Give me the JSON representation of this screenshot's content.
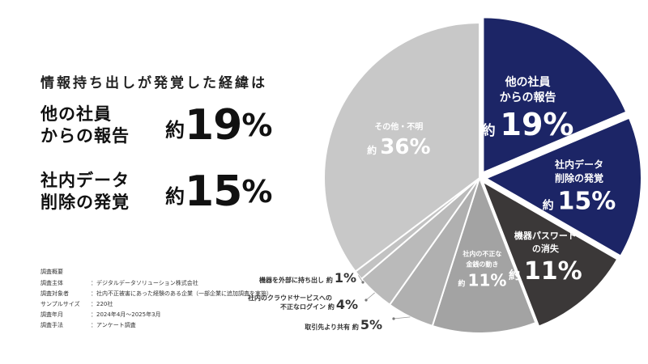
{
  "headline": "情報持ち出しが発覚した経緯は",
  "highlights": [
    {
      "label_lines": [
        "他の社員",
        "からの報告"
      ],
      "prefix": "約",
      "value": "19",
      "unit": "%"
    },
    {
      "label_lines": [
        "社内データ",
        "削除の発覚"
      ],
      "prefix": "約",
      "value": "15",
      "unit": "%"
    }
  ],
  "survey": {
    "title": "調査概要",
    "rows": [
      {
        "key": "調査主体",
        "value": "：デジタルデータソリューション株式会社"
      },
      {
        "key": "調査対象者",
        "value": "：社内不正被害にあった経験のある企業（一部企業に追加調査を実施）"
      },
      {
        "key": "サンプルサイズ",
        "value": "：220社"
      },
      {
        "key": "調査年月",
        "value": "：2024年4月〜2025年3月"
      },
      {
        "key": "調査手法",
        "value": "：アンケート調査"
      }
    ]
  },
  "chart_data": {
    "type": "pie",
    "title": "",
    "prefix": "約",
    "unit": "%",
    "slices": [
      {
        "label_lines": [
          "他の社員",
          "からの報告"
        ],
        "value": 19,
        "color": "#1c2566",
        "text_color": "#ffffff",
        "inside": true
      },
      {
        "label_lines": [
          "社内データ",
          "削除の発覚"
        ],
        "value": 15,
        "color": "#1c2566",
        "text_color": "#ffffff",
        "inside": true
      },
      {
        "label_lines": [
          "機器パスワード",
          "の消失"
        ],
        "value": 11,
        "color": "#3b3838",
        "text_color": "#ffffff",
        "inside": true
      },
      {
        "label_lines": [
          "社内の不正な",
          "金銭の動き"
        ],
        "value": 11,
        "color": "#a3a3a3",
        "text_color": "#ffffff",
        "inside": true
      },
      {
        "label_lines": [
          "取引先より共有"
        ],
        "value": 5,
        "color": "#b0b0b0",
        "text_color": "#333333",
        "inside": false
      },
      {
        "label_lines": [
          "社内のクラウドサービスへの",
          "不正なログイン"
        ],
        "value": 4,
        "color": "#bababa",
        "text_color": "#333333",
        "inside": false
      },
      {
        "label_lines": [
          "機器を外部に持ち出し"
        ],
        "value": 1,
        "color": "#c2c2c2",
        "text_color": "#333333",
        "inside": false
      },
      {
        "label_lines": [
          "その他・不明"
        ],
        "value": 36,
        "color": "#c8c8c8",
        "text_color": "#ffffff",
        "inside": true
      }
    ]
  }
}
